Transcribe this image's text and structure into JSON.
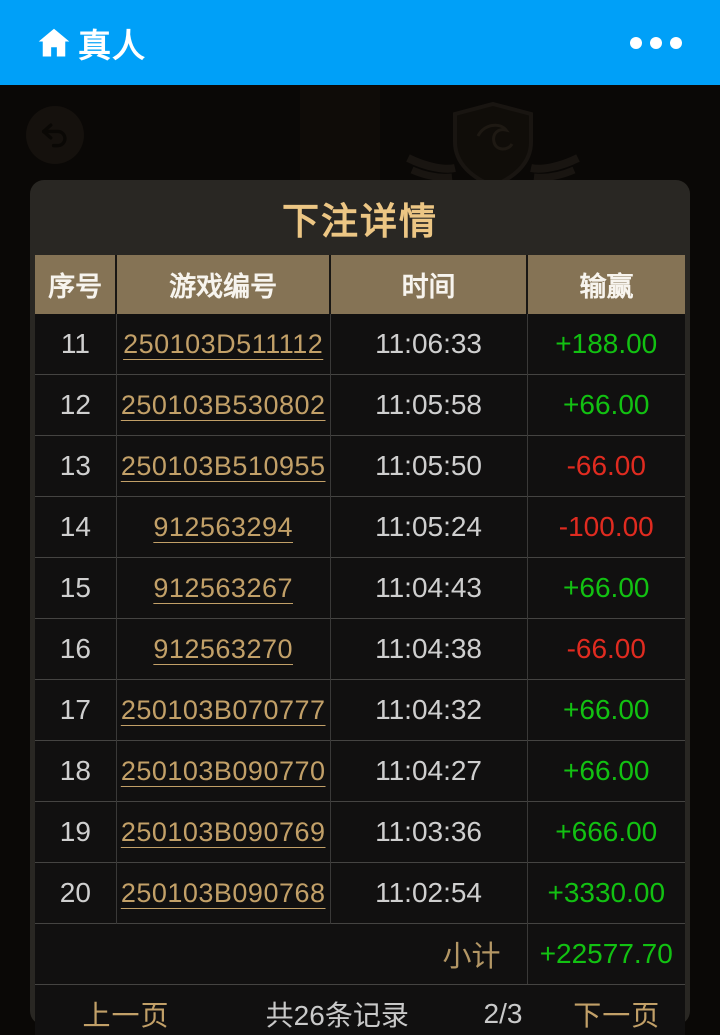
{
  "header": {
    "title": "真人",
    "more_icon": "three-dots"
  },
  "modal": {
    "title": "下注详情"
  },
  "table": {
    "columns": [
      "序号",
      "游戏编号",
      "时间",
      "输赢"
    ],
    "rows": [
      {
        "no": "11",
        "game_id": "250103D511112",
        "time": "11:06:33",
        "result": "+188.00"
      },
      {
        "no": "12",
        "game_id": "250103B530802",
        "time": "11:05:58",
        "result": "+66.00"
      },
      {
        "no": "13",
        "game_id": "250103B510955",
        "time": "11:05:50",
        "result": "-66.00"
      },
      {
        "no": "14",
        "game_id": "912563294",
        "time": "11:05:24",
        "result": "-100.00"
      },
      {
        "no": "15",
        "game_id": "912563267",
        "time": "11:04:43",
        "result": "+66.00"
      },
      {
        "no": "16",
        "game_id": "912563270",
        "time": "11:04:38",
        "result": "-66.00"
      },
      {
        "no": "17",
        "game_id": "250103B070777",
        "time": "11:04:32",
        "result": "+66.00"
      },
      {
        "no": "18",
        "game_id": "250103B090770",
        "time": "11:04:27",
        "result": "+66.00"
      },
      {
        "no": "19",
        "game_id": "250103B090769",
        "time": "11:03:36",
        "result": "+666.00"
      },
      {
        "no": "20",
        "game_id": "250103B090768",
        "time": "11:02:54",
        "result": "+3330.00"
      }
    ],
    "subtotal_label": "小计",
    "subtotal_value": "+22577.70"
  },
  "pagination": {
    "prev": "上一页",
    "total": "共26条记录",
    "page": "2/3",
    "next": "下一页"
  },
  "colors": {
    "accent_blue": "#00a0f8",
    "link_gold": "#c2a068",
    "win_green": "#12c112",
    "loss_red": "#e02b20",
    "table_header_bg": "#857355"
  }
}
